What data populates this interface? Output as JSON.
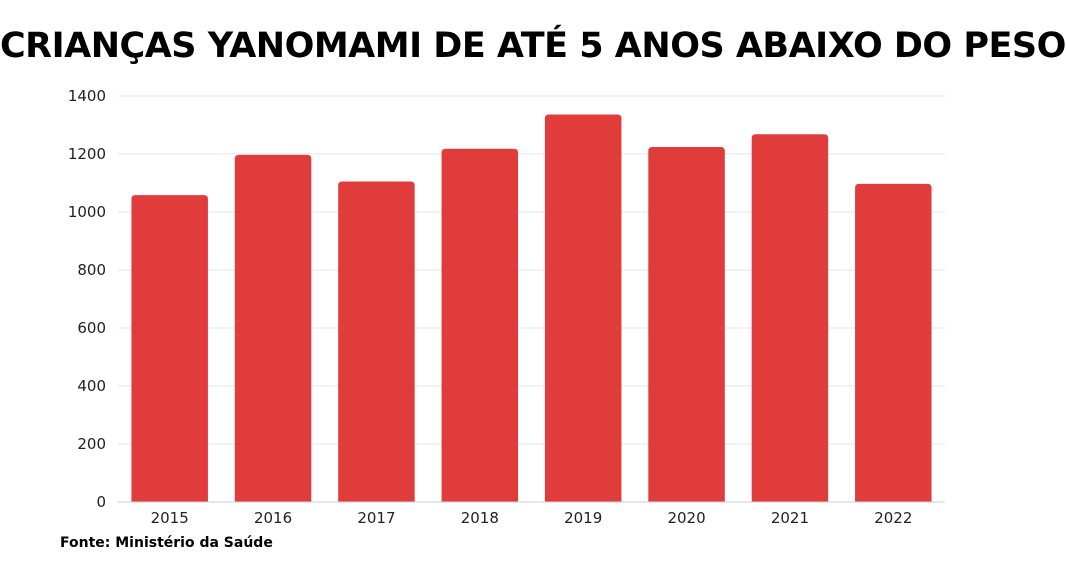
{
  "chart_data": {
    "type": "bar",
    "title": "CRIANÇAS YANOMAMI DE ATÉ 5 ANOS ABAIXO DO PESO",
    "categories": [
      "2015",
      "2016",
      "2017",
      "2018",
      "2019",
      "2020",
      "2021",
      "2022"
    ],
    "values": [
      1058,
      1197,
      1105,
      1218,
      1336,
      1224,
      1268,
      1097
    ],
    "xlabel": "",
    "ylabel": "",
    "ylim": [
      0,
      1400
    ],
    "yticks": [
      0,
      200,
      400,
      600,
      800,
      1000,
      1200,
      1400
    ],
    "grid": true,
    "legend": "none",
    "bar_color": "#e03c3c"
  },
  "source": "Fonte: Ministério da Saúde"
}
